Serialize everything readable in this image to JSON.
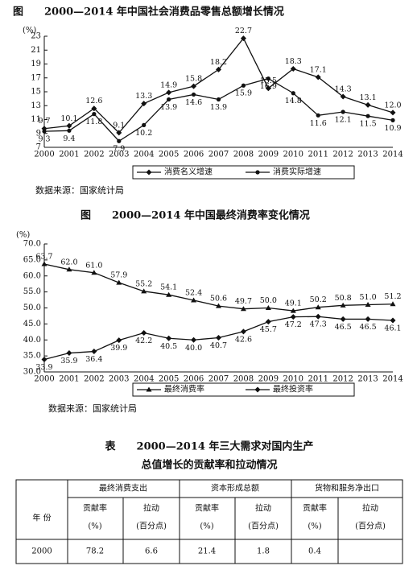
{
  "chart_data": [
    {
      "type": "line",
      "title": "图　　2000—2014 年中国社会消费品零售总额增长情况",
      "y_label": "(%)",
      "source": "数据来源：国家统计局",
      "categories": [
        "2000",
        "2001",
        "2002",
        "2003",
        "2004",
        "2005",
        "2006",
        "2007",
        "2008",
        "2009",
        "2010",
        "2011",
        "2012",
        "2013",
        "2014"
      ],
      "ylim": [
        7,
        23
      ],
      "yticks": [
        7,
        9,
        11,
        13,
        15,
        17,
        19,
        21,
        23
      ],
      "series": [
        {
          "name": "消费名义增速",
          "color": "#111111",
          "marker": "diamond",
          "values": [
            9.7,
            10.1,
            12.6,
            9.1,
            13.3,
            14.9,
            15.8,
            18.2,
            22.7,
            15.5,
            18.3,
            17.1,
            14.3,
            13.1,
            12.0
          ],
          "value_labels": [
            "9.7",
            "10.1",
            "12.6",
            "9.1",
            "13.3",
            "14.9",
            "15.8",
            "18.2",
            "22.7",
            "15.5",
            "18.3",
            "17.1",
            "14.3",
            "13.1",
            "12.0"
          ]
        },
        {
          "name": "消费实际增速",
          "color": "#111111",
          "marker": "circle",
          "values": [
            9.3,
            9.4,
            11.8,
            7.9,
            10.2,
            13.9,
            14.6,
            13.9,
            15.9,
            16.9,
            14.8,
            11.6,
            12.1,
            11.5,
            10.9
          ],
          "value_labels": [
            "9.3",
            "9.4",
            "11.8",
            "7.9",
            "10.2",
            "13.9",
            "14.6",
            "13.9",
            "15.9",
            "16.9",
            "14.8",
            "11.6",
            "12.1",
            "11.5",
            "10.9"
          ]
        }
      ]
    },
    {
      "type": "line",
      "title": "图　　2000—2014 年中国最终消费率变化情况",
      "y_label": "(%)",
      "source": "数据来源：国家统计局",
      "categories": [
        "2000",
        "2001",
        "2002",
        "2003",
        "2004",
        "2005",
        "2006",
        "2007",
        "2008",
        "2009",
        "2010",
        "2011",
        "2012",
        "2013",
        "2014"
      ],
      "ylim": [
        30,
        70
      ],
      "yticks": [
        {
          "value": 30,
          "label": "30.0"
        },
        {
          "value": 35,
          "label": "35.0"
        },
        {
          "value": 40,
          "label": "40.0"
        },
        {
          "value": 45,
          "label": "45.0"
        },
        {
          "value": 50,
          "label": "50.0"
        },
        {
          "value": 55,
          "label": "55.0"
        },
        {
          "value": 60,
          "label": "60.0"
        },
        {
          "value": 65,
          "label": "65.0"
        },
        {
          "value": 70,
          "label": "70.0"
        }
      ],
      "series": [
        {
          "name": "最终消费率",
          "color": "#111111",
          "marker": "triangle",
          "values": [
            63.7,
            62.0,
            61.0,
            57.9,
            55.2,
            54.1,
            52.4,
            50.6,
            49.7,
            50.0,
            49.1,
            50.2,
            50.8,
            51.0,
            51.2
          ],
          "value_labels": [
            "63.7",
            "62.0",
            "61.0",
            "57.9",
            "55.2",
            "54.1",
            "52.4",
            "50.6",
            "49.7",
            "50.0",
            "49.1",
            "50.2",
            "50.8",
            "51.0",
            "51.2"
          ]
        },
        {
          "name": "最终投资率",
          "color": "#111111",
          "marker": "diamond",
          "values": [
            33.9,
            35.9,
            36.4,
            39.9,
            42.2,
            40.5,
            40.0,
            40.7,
            42.6,
            45.7,
            47.2,
            47.3,
            46.5,
            46.5,
            46.1
          ],
          "value_labels": [
            "33.9",
            "35.9",
            "36.4",
            "39.9",
            "42.2",
            "40.5",
            "40.0",
            "40.7",
            "42.6",
            "45.7",
            "47.2",
            "47.3",
            "46.5",
            "46.5",
            "46.1"
          ]
        }
      ]
    }
  ],
  "table": {
    "title": [
      "表　　2000—2014 年三大需求对国内生产",
      "总值增长的贡献率和拉动情况"
    ],
    "year_header": "年 份",
    "groups": [
      "最终消费支出",
      "资本形成总额",
      "货物和服务净出口"
    ],
    "sub_headers": [
      [
        "贡献率",
        "(%)"
      ],
      [
        "拉动",
        "(百分点)"
      ],
      [
        "贡献率",
        "(%)"
      ],
      [
        "拉动",
        "(百分点)"
      ],
      [
        "贡献率",
        "(%)"
      ],
      [
        "拉动",
        "(百分点)"
      ]
    ],
    "rows": [
      [
        2000,
        "78.2",
        "6.6",
        "21.4",
        "1.8",
        "0.4",
        null
      ]
    ]
  }
}
